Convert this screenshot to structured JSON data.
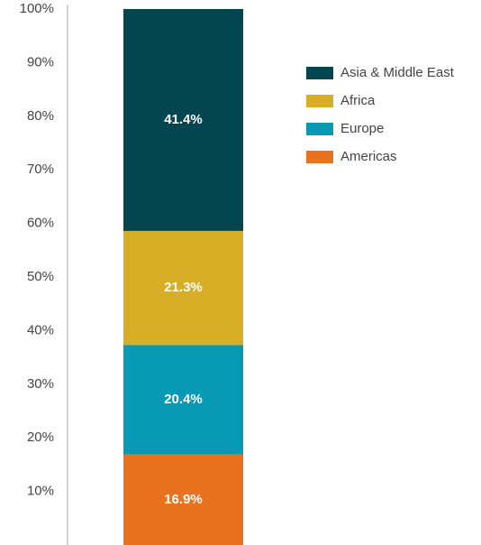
{
  "chart_data": {
    "type": "stacked-bar",
    "series": [
      {
        "name": "Asia & Middle East",
        "color": "#03464f",
        "values": [
          41.4
        ],
        "value_labels": [
          "41.4%"
        ]
      },
      {
        "name": "Africa",
        "color": "#d9ae27",
        "values": [
          21.3
        ],
        "value_labels": [
          "21.3%"
        ]
      },
      {
        "name": "Europe",
        "color": "#0899b5",
        "values": [
          20.4
        ],
        "value_labels": [
          "20.4%"
        ]
      },
      {
        "name": "Americas",
        "color": "#e8721e",
        "values": [
          16.9
        ],
        "value_labels": [
          "16.9%"
        ]
      }
    ],
    "ylim": [
      0,
      100
    ],
    "yticks": [
      {
        "value": 10,
        "label": "10%"
      },
      {
        "value": 20,
        "label": "20%"
      },
      {
        "value": 30,
        "label": "30%"
      },
      {
        "value": 40,
        "label": "40%"
      },
      {
        "value": 50,
        "label": "50%"
      },
      {
        "value": 60,
        "label": "60%"
      },
      {
        "value": 70,
        "label": "70%"
      },
      {
        "value": 80,
        "label": "80%"
      },
      {
        "value": 90,
        "label": "90%"
      },
      {
        "value": 100,
        "label": "100%"
      }
    ],
    "legend": "top-right"
  }
}
